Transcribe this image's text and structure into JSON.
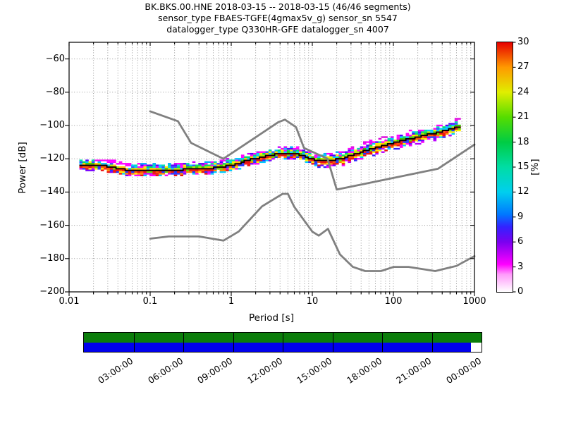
{
  "titles": {
    "line1": "BK.BKS.00.HNE   2018-03-15 -- 2018-03-15  (46/46 segments)",
    "line2": "sensor_type FBAES-TGFE(4gmax5v_g) sensor_sn 5547",
    "line3": "datalogger_type Q330HR-GFE datalogger_sn 4007"
  },
  "axes": {
    "xlabel": "Period [s]",
    "ylabel": "Power [dB]",
    "x_tick_labels": [
      "0.01",
      "0.1",
      "1",
      "10",
      "100",
      "1000"
    ],
    "x_tick_values": [
      0.01,
      0.1,
      1,
      10,
      100,
      1000
    ],
    "y_tick_labels": [
      "−60",
      "−80",
      "−100",
      "−120",
      "−140",
      "−160",
      "−180",
      "−200"
    ],
    "y_tick_values": [
      -60,
      -80,
      -100,
      -120,
      -140,
      -160,
      -180,
      -200
    ],
    "grid_style": "dotted",
    "grid_color": "#999999"
  },
  "colorbar": {
    "label": "[%]",
    "tick_labels": [
      "0",
      "3",
      "6",
      "9",
      "12",
      "15",
      "18",
      "21",
      "24",
      "27",
      "30"
    ],
    "tick_values": [
      0,
      3,
      6,
      9,
      12,
      15,
      18,
      21,
      24,
      27,
      30
    ],
    "min": 0,
    "max": 30,
    "gradient_stops": [
      [
        0,
        "#ffffff"
      ],
      [
        7,
        "#ff9bfb"
      ],
      [
        11,
        "#ff00ff"
      ],
      [
        20,
        "#7a00f0"
      ],
      [
        26,
        "#3322ff"
      ],
      [
        31,
        "#0077ff"
      ],
      [
        40,
        "#00cfee"
      ],
      [
        50,
        "#00dda4"
      ],
      [
        60,
        "#00cc44"
      ],
      [
        70,
        "#55dd00"
      ],
      [
        80,
        "#e0ee00"
      ],
      [
        90,
        "#ff9900"
      ],
      [
        100,
        "#e60000"
      ]
    ]
  },
  "chart_data": {
    "type": "heatmap",
    "title": "BK.BKS.00.HNE 2018-03-15 -- 2018-03-15 (46/46 segments)",
    "xlabel": "Period [s]",
    "ylabel": "Power [dB]",
    "xscale": "log",
    "xlim": [
      0.01,
      1000
    ],
    "ylim": [
      -200,
      -50
    ],
    "colorbar_label": "[%]",
    "colorbar_range": [
      0,
      30
    ],
    "db_bin_width_db": 1,
    "period_bins_per_octave": 8,
    "psd_band": {
      "min_period_s": 0.014,
      "max_period_s": 700,
      "typical_halfwidth_db": 4
    },
    "psd_mode_curve": {
      "period_s": [
        0.014,
        0.02,
        0.03,
        0.05,
        0.08,
        0.15,
        0.25,
        0.5,
        0.8,
        1,
        1.5,
        2,
        3,
        4.5,
        6,
        8,
        11,
        16,
        22,
        35,
        60,
        100,
        180,
        300,
        500,
        700
      ],
      "power_db": [
        -124.5,
        -124,
        -124.5,
        -126.5,
        -127.5,
        -127.5,
        -126.5,
        -126,
        -125,
        -124,
        -121.5,
        -119.8,
        -118,
        -116.8,
        -116.6,
        -118.5,
        -120.8,
        -121.2,
        -120.2,
        -117,
        -113.5,
        -110.5,
        -107.5,
        -105,
        -102.5,
        -100.5
      ]
    },
    "noise_models": {
      "color": "#808080",
      "nhnm": [
        [
          0.1,
          -91.5
        ],
        [
          0.22,
          -97.4
        ],
        [
          0.32,
          -110.5
        ],
        [
          0.8,
          -120.0
        ],
        [
          3.8,
          -98.0
        ],
        [
          4.6,
          -96.5
        ],
        [
          6.3,
          -101.0
        ],
        [
          7.9,
          -113.5
        ],
        [
          15.4,
          -120.0
        ],
        [
          20.0,
          -138.5
        ],
        [
          354.8,
          -126.0
        ],
        [
          1000.0,
          -111.5
        ]
      ],
      "nlnm": [
        [
          0.1,
          -168.0
        ],
        [
          0.17,
          -166.7
        ],
        [
          0.4,
          -166.7
        ],
        [
          0.8,
          -169.2
        ],
        [
          1.24,
          -163.7
        ],
        [
          2.4,
          -148.6
        ],
        [
          4.3,
          -141.1
        ],
        [
          5.0,
          -141.1
        ],
        [
          6.0,
          -149.0
        ],
        [
          10.0,
          -163.8
        ],
        [
          12.0,
          -166.2
        ],
        [
          15.6,
          -162.1
        ],
        [
          21.9,
          -177.5
        ],
        [
          31.6,
          -185.0
        ],
        [
          45.0,
          -187.5
        ],
        [
          70.0,
          -187.5
        ],
        [
          101.0,
          -185.0
        ],
        [
          154.0,
          -185.0
        ],
        [
          328.0,
          -187.5
        ],
        [
          600.0,
          -184.4
        ],
        [
          1000.0,
          -178.5
        ]
      ]
    },
    "mode_line_color": "#000000",
    "cell_palette": {
      "-5": [
        "#ff00ff",
        "#4400ee"
      ],
      "-4": [
        "#ff00ff",
        "#3322ff",
        "#bb00ff"
      ],
      "-3": [
        "#ee1111",
        "#ff00ff",
        "#7700ff",
        "#00ccff"
      ],
      "-2": [
        "#ee1111",
        "#ff8800",
        "#ffee00",
        "#cc00ff",
        "#2233ff"
      ],
      "-1": [
        "#ee1111",
        "#ff5500",
        "#66dd00",
        "#2233ff"
      ],
      "0": [
        "#dd0000",
        "#ee2200"
      ],
      "1": [
        "#33cc00",
        "#aaee00",
        "#ffcc00",
        "#00ccff"
      ],
      "2": [
        "#00ccff",
        "#00dd66",
        "#ffee00",
        "#3355ff",
        "#ff00ff"
      ],
      "3": [
        "#00ccff",
        "#ff00ff",
        "#5500ff",
        "#00e0aa"
      ],
      "4": [
        "#ff00ff",
        "#cc00ff",
        "#00aaff"
      ],
      "5": [
        "#ff00ff",
        "#dd00dd"
      ]
    }
  },
  "timeline": {
    "tick_labels": [
      "03:00:00",
      "06:00:00",
      "09:00:00",
      "12:00:00",
      "15:00:00",
      "18:00:00",
      "21:00:00",
      "00:00:00"
    ],
    "num_intervals": 8,
    "top_bar_color": "#0b7d0b",
    "bottom_bar_color": "#0000ee",
    "gap_color": "#ffffff",
    "covered_fraction": 0.973
  }
}
